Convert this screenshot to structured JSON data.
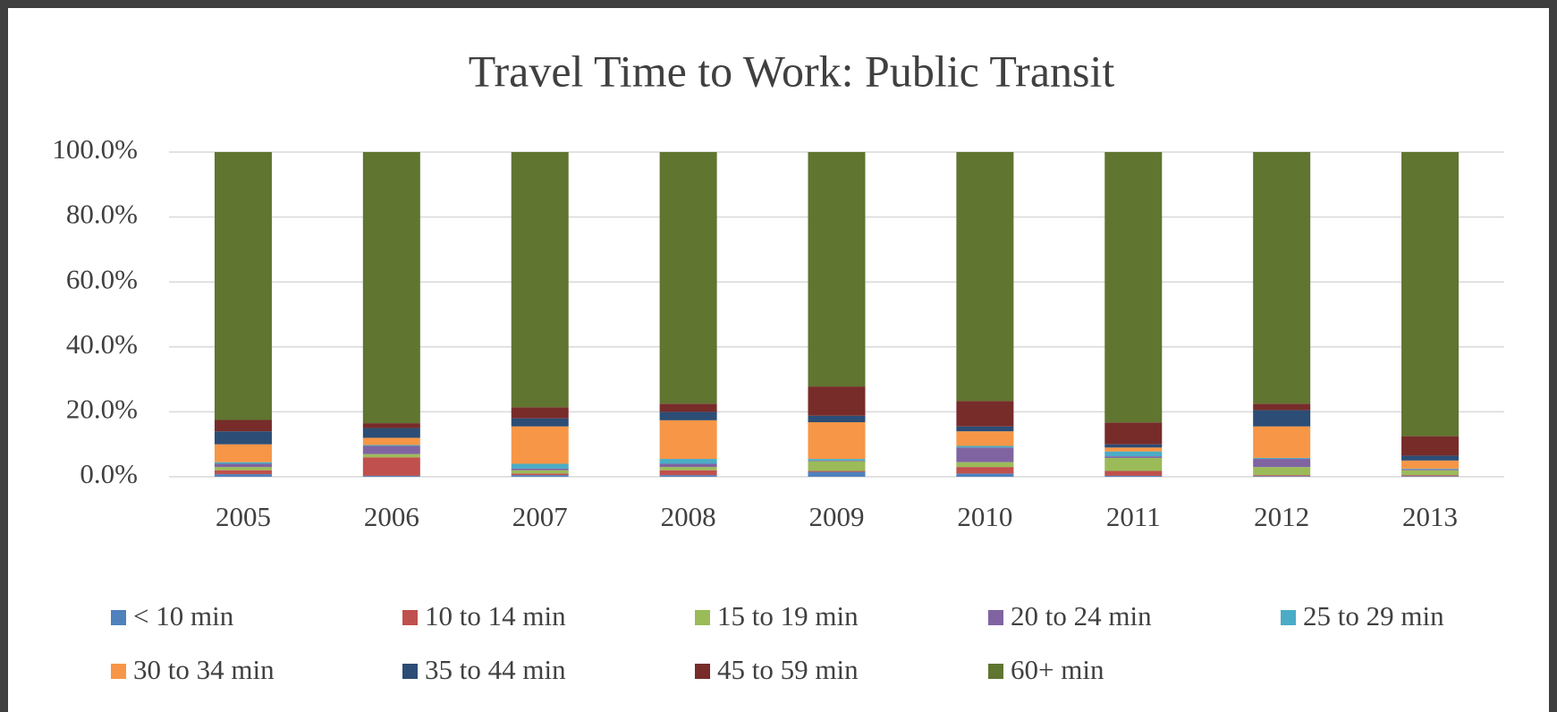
{
  "chart_data": {
    "type": "stacked_bar",
    "title": "Travel Time to Work: Public Transit",
    "categories": [
      "2005",
      "2006",
      "2007",
      "2008",
      "2009",
      "2010",
      "2011",
      "2012",
      "2013"
    ],
    "series": [
      {
        "name": "< 10 min",
        "color": "#4f81bd",
        "values": [
          0.8,
          0.3,
          0.5,
          0.5,
          1.5,
          1.0,
          0.3,
          0.2,
          0.2
        ]
      },
      {
        "name": "10 to 14 min",
        "color": "#c0504d",
        "values": [
          1.2,
          5.7,
          0.5,
          1.5,
          0.3,
          2.0,
          1.5,
          0.3,
          0.3
        ]
      },
      {
        "name": "15 to 19 min",
        "color": "#9bbb59",
        "values": [
          1.0,
          1.0,
          1.0,
          1.0,
          3.0,
          1.5,
          4.0,
          2.5,
          1.5
        ]
      },
      {
        "name": "20 to 24 min",
        "color": "#8064a2",
        "values": [
          1.0,
          2.5,
          0.5,
          1.0,
          0.2,
          4.5,
          0.5,
          2.5,
          0.3
        ]
      },
      {
        "name": "25 to 29 min",
        "color": "#4bacc6",
        "values": [
          0.5,
          0.3,
          1.5,
          1.5,
          0.5,
          0.5,
          1.5,
          0.3,
          0.2
        ]
      },
      {
        "name": "30 to 34 min",
        "color": "#f79646",
        "values": [
          5.5,
          2.2,
          11.5,
          11.9,
          11.3,
          4.5,
          1.2,
          9.7,
          2.5
        ]
      },
      {
        "name": "35 to 44 min",
        "color": "#2c4d75",
        "values": [
          4.0,
          3.0,
          2.5,
          2.6,
          2.0,
          1.5,
          1.0,
          5.0,
          1.5
        ]
      },
      {
        "name": "45 to 59 min",
        "color": "#772c2a",
        "values": [
          3.5,
          1.5,
          3.4,
          2.5,
          9.0,
          7.8,
          6.7,
          2.0,
          6.0
        ]
      },
      {
        "name": "60+ min",
        "color": "#5f7530",
        "values": [
          82.5,
          83.5,
          78.6,
          77.5,
          72.2,
          76.7,
          83.3,
          77.5,
          87.5
        ]
      }
    ],
    "ylim": [
      0,
      100
    ],
    "yticks": [
      {
        "value": 0,
        "label": "0.0%"
      },
      {
        "value": 20,
        "label": "20.0%"
      },
      {
        "value": 40,
        "label": "40.0%"
      },
      {
        "value": 60,
        "label": "60.0%"
      },
      {
        "value": 80,
        "label": "80.0%"
      },
      {
        "value": 100,
        "label": "100.0%"
      }
    ],
    "grid": true,
    "legend": "bottom"
  }
}
